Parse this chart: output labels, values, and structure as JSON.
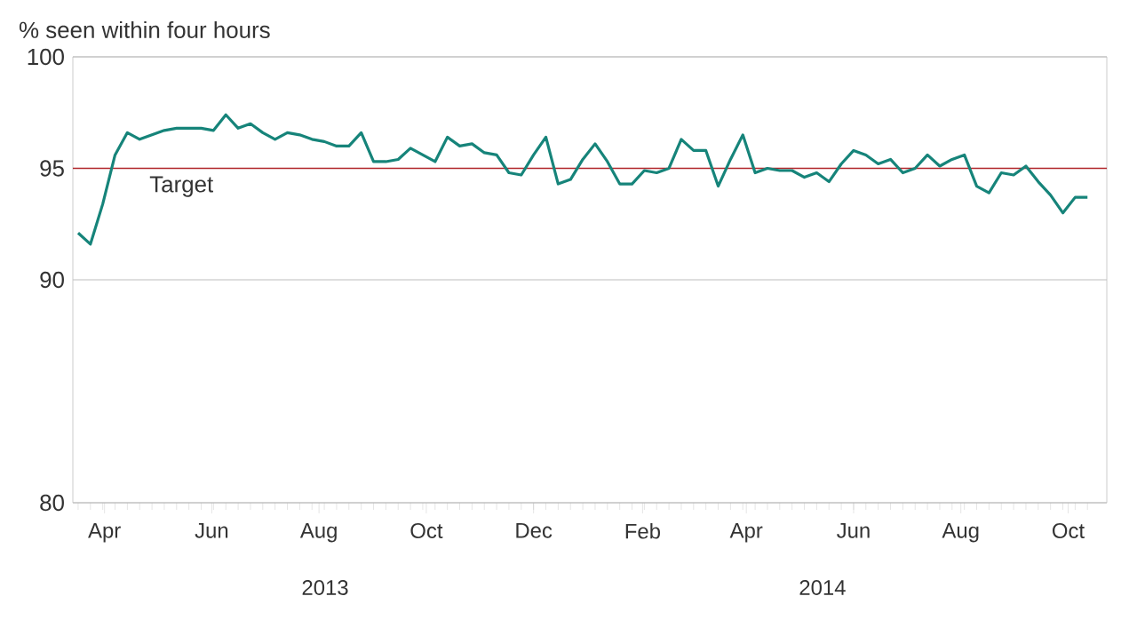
{
  "chart_data": {
    "type": "line",
    "ylabel": "% seen within four hours",
    "x": [
      "2013-03-17",
      "2013-03-24",
      "2013-03-31",
      "2013-04-07",
      "2013-04-14",
      "2013-04-21",
      "2013-04-28",
      "2013-05-05",
      "2013-05-12",
      "2013-05-19",
      "2013-05-26",
      "2013-06-02",
      "2013-06-09",
      "2013-06-16",
      "2013-06-23",
      "2013-06-30",
      "2013-07-07",
      "2013-07-14",
      "2013-07-21",
      "2013-07-28",
      "2013-08-04",
      "2013-08-11",
      "2013-08-18",
      "2013-08-25",
      "2013-09-01",
      "2013-09-08",
      "2013-09-15",
      "2013-09-22",
      "2013-09-29",
      "2013-10-06",
      "2013-10-13",
      "2013-10-20",
      "2013-10-27",
      "2013-11-03",
      "2013-11-10",
      "2013-11-17",
      "2013-11-24",
      "2013-12-01",
      "2013-12-08",
      "2013-12-15",
      "2013-12-22",
      "2013-12-29",
      "2014-01-05",
      "2014-01-12",
      "2014-01-19",
      "2014-01-26",
      "2014-02-02",
      "2014-02-09",
      "2014-02-16",
      "2014-02-23",
      "2014-03-02",
      "2014-03-09",
      "2014-03-16",
      "2014-03-23",
      "2014-03-30",
      "2014-04-06",
      "2014-04-13",
      "2014-04-20",
      "2014-04-27",
      "2014-05-04",
      "2014-05-11",
      "2014-05-18",
      "2014-05-25",
      "2014-06-01",
      "2014-06-08",
      "2014-06-15",
      "2014-06-22",
      "2014-06-29",
      "2014-07-06",
      "2014-07-13",
      "2014-07-20",
      "2014-07-27",
      "2014-08-03",
      "2014-08-10",
      "2014-08-17",
      "2014-08-24",
      "2014-08-31",
      "2014-09-07",
      "2014-09-14",
      "2014-09-21",
      "2014-09-28",
      "2014-10-05",
      "2014-10-12"
    ],
    "series": [
      {
        "color": "#16847a",
        "values": [
          92.1,
          91.6,
          93.4,
          95.6,
          96.6,
          96.3,
          96.5,
          96.7,
          96.8,
          96.8,
          96.8,
          96.7,
          97.4,
          96.8,
          97.0,
          96.6,
          96.3,
          96.6,
          96.5,
          96.3,
          96.2,
          96.0,
          96.0,
          96.6,
          95.3,
          95.3,
          95.4,
          95.9,
          95.6,
          95.3,
          96.4,
          96.0,
          96.1,
          95.7,
          95.6,
          94.8,
          94.7,
          95.6,
          96.4,
          94.3,
          94.5,
          95.4,
          96.1,
          95.3,
          94.3,
          94.3,
          94.9,
          94.8,
          95.0,
          96.3,
          95.8,
          95.8,
          94.2,
          95.4,
          96.5,
          94.8,
          95.0,
          94.9,
          94.9,
          94.6,
          94.8,
          94.4,
          95.2,
          95.8,
          95.6,
          95.2,
          95.4,
          94.8,
          95.0,
          95.6,
          95.1,
          95.4,
          95.6,
          94.2,
          93.9,
          94.8,
          94.7,
          95.1,
          94.4,
          93.8,
          93.0,
          93.7,
          93.7
        ]
      }
    ],
    "xlim": [
      "2013-03-14",
      "2014-10-23"
    ],
    "xticks": [
      {
        "value": "2013-04-01",
        "label": "Apr"
      },
      {
        "value": "2013-06-01",
        "label": "Jun"
      },
      {
        "value": "2013-08-01",
        "label": "Aug"
      },
      {
        "value": "2013-10-01",
        "label": "Oct"
      },
      {
        "value": "2013-12-01",
        "label": "Dec"
      },
      {
        "value": "2014-02-01",
        "label": "Feb"
      },
      {
        "value": "2014-04-01",
        "label": "Apr"
      },
      {
        "value": "2014-06-01",
        "label": "Jun"
      },
      {
        "value": "2014-08-01",
        "label": "Aug"
      },
      {
        "value": "2014-10-01",
        "label": "Oct"
      }
    ],
    "ylim": [
      80,
      100
    ],
    "yticks": [
      80,
      90,
      95,
      100
    ],
    "grid": "y",
    "marker": "none",
    "line_style": "solid",
    "ref_lines": [
      {
        "axis": "y",
        "value": 95,
        "label": "Target",
        "color": "#b0252a"
      }
    ],
    "annotations": [
      "2013",
      "2014"
    ]
  }
}
